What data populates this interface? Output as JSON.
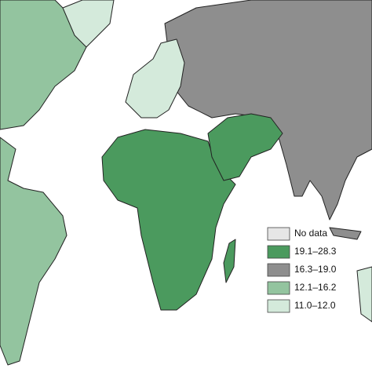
{
  "legend": {
    "items": [
      {
        "label": "No data",
        "color": "#e6e6e6"
      },
      {
        "label": "19.1–28.3",
        "color": "#4b9a5e"
      },
      {
        "label": "16.3–19.0",
        "color": "#8e8e8e"
      },
      {
        "label": "12.1–16.2",
        "color": "#93c49f"
      },
      {
        "label": "11.0–12.0",
        "color": "#d4eadb"
      }
    ]
  }
}
